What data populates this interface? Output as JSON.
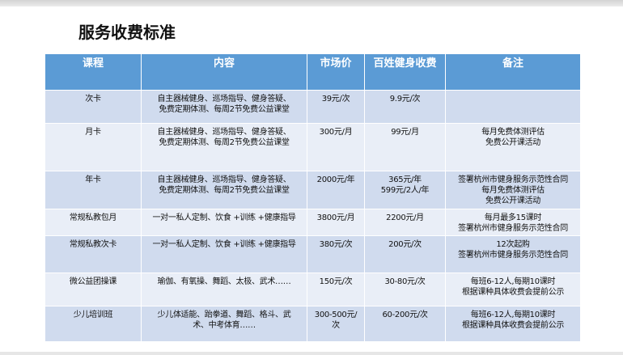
{
  "title": "服务收费标准",
  "headers": [
    "课程",
    "内容",
    "市场价",
    "百姓健身收费",
    "备注"
  ],
  "rows": [
    {
      "course": "次卡",
      "content": [
        "自主器械健身、巡场指导、健身答疑、",
        "免费定期体测、每周2节免费公益课堂"
      ],
      "market": [
        "39元/次"
      ],
      "fee": [
        "9.9元/次"
      ],
      "note": []
    },
    {
      "course": "月卡",
      "content": [
        "自主器械健身、巡场指导、健身答疑、",
        "免费定期体测、每周2节免费公益课堂"
      ],
      "market": [
        "300元/月"
      ],
      "fee": [
        "99元/月"
      ],
      "note": [
        "每月免费体测评估",
        "免费公开课活动"
      ]
    },
    {
      "course": "年卡",
      "content": [
        "自主器械健身、巡场指导、健身答疑、",
        "免费定期体测、每周2节免费公益课堂"
      ],
      "market": [
        "2000元/年"
      ],
      "fee": [
        "365元/年",
        "599元/2人/年"
      ],
      "note": [
        "签署杭州市健身服务示范性合同",
        "每月免费体测评估",
        "免费公开课活动"
      ]
    },
    {
      "course": "常规私教包月",
      "content": [
        "一对一私人定制、饮食 +训练 +健康指导"
      ],
      "market": [
        "3800元/月"
      ],
      "fee": [
        "2200元/月"
      ],
      "note": [
        "每月最多15课时",
        "签署杭州市健身服务示范性合同"
      ]
    },
    {
      "course": "常规私教次卡",
      "content": [
        "一对一私人定制、饮食 +训练 +健康指导"
      ],
      "market": [
        "380元/次"
      ],
      "fee": [
        "200元/次"
      ],
      "note": [
        "12次起购",
        "签署杭州市健身服务示范性合同"
      ]
    },
    {
      "course": "微公益团操课",
      "content": [
        "瑜伽、有氧操、舞蹈、太极、武术……"
      ],
      "market": [
        "150元/次"
      ],
      "fee": [
        "30-80元/次"
      ],
      "note": [
        "每班6-12人,每期10课时",
        "根据课种具体收费会提前公示"
      ]
    },
    {
      "course": "少儿培训班",
      "content": [
        "少儿体适能、跆拳道、舞蹈、格斗、武",
        "术、中考体育……"
      ],
      "market": [
        "300-500元/",
        "次"
      ],
      "fee": [
        "60-200元/次"
      ],
      "note": [
        "每班6-12人,每期10课时",
        "根据课种具体收费会提前公示"
      ]
    }
  ]
}
